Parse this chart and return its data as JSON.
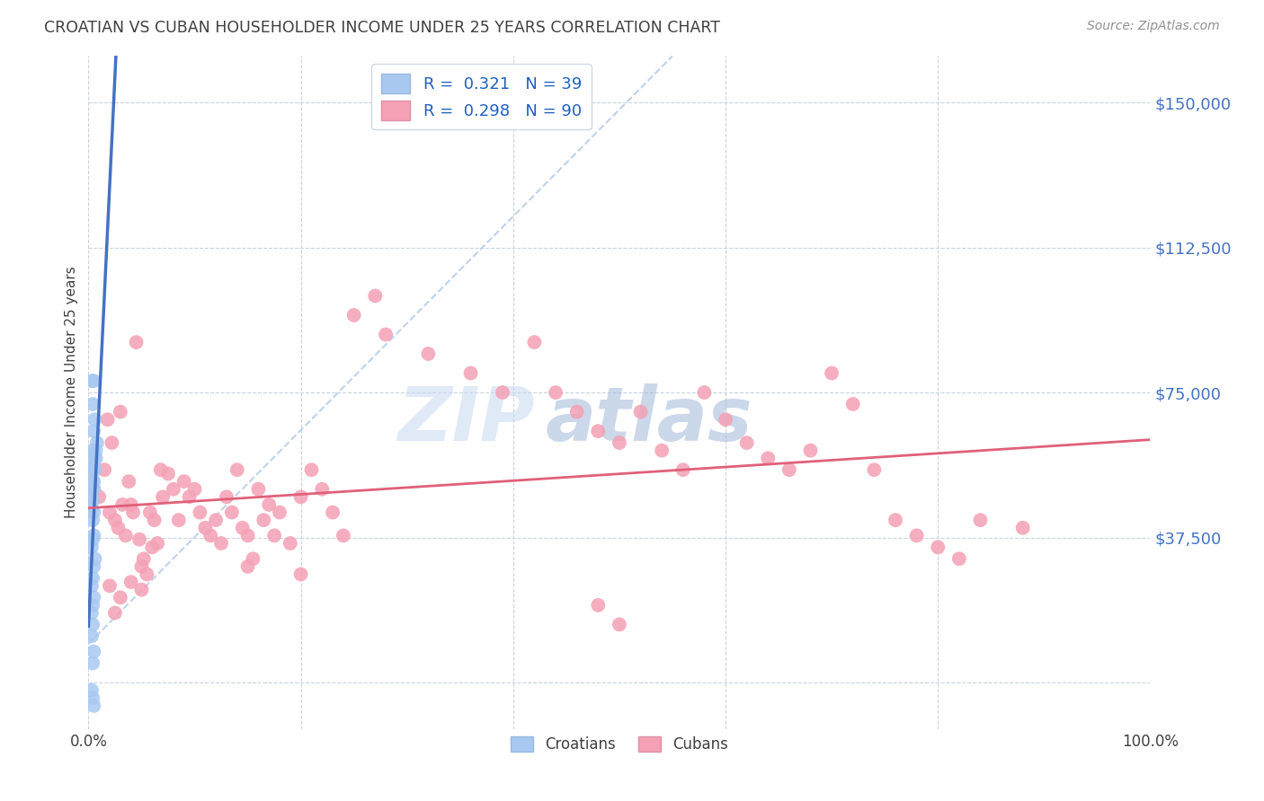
{
  "title": "CROATIAN VS CUBAN HOUSEHOLDER INCOME UNDER 25 YEARS CORRELATION CHART",
  "source": "Source: ZipAtlas.com",
  "ylabel": "Householder Income Under 25 years",
  "xlim": [
    0,
    1
  ],
  "ylim": [
    -12000,
    162000
  ],
  "yticks": [
    0,
    37500,
    75000,
    112500,
    150000
  ],
  "ytick_labels": [
    "",
    "$37,500",
    "$75,000",
    "$112,500",
    "$150,000"
  ],
  "xticks": [
    0,
    0.2,
    0.4,
    0.6,
    0.8,
    1.0
  ],
  "xtick_labels": [
    "0.0%",
    "",
    "",
    "",
    "",
    "100.0%"
  ],
  "croatian_R": 0.321,
  "croatian_N": 39,
  "cuban_R": 0.298,
  "cuban_N": 90,
  "croatian_color": "#a8c8f0",
  "cuban_color": "#f4a0b5",
  "croatian_line_color": "#4472c4",
  "cuban_line_color": "#e0607a",
  "diagonal_color": "#b8cfe8",
  "background_color": "#ffffff",
  "grid_color": "#c8d4e0",
  "title_color": "#404040",
  "source_color": "#909090",
  "label_color": "#4472c4",
  "watermark_zip": "ZIP",
  "watermark_atlas": "atlas",
  "watermark_color": "#c8d8f0",
  "croatian_points": [
    [
      0.003,
      78000
    ],
    [
      0.004,
      72000
    ],
    [
      0.005,
      78000
    ],
    [
      0.005,
      65000
    ],
    [
      0.006,
      68000
    ],
    [
      0.003,
      55000
    ],
    [
      0.004,
      52000
    ],
    [
      0.005,
      58000
    ],
    [
      0.004,
      60000
    ],
    [
      0.005,
      56000
    ],
    [
      0.003,
      48000
    ],
    [
      0.004,
      50000
    ],
    [
      0.005,
      52000
    ],
    [
      0.006,
      55000
    ],
    [
      0.007,
      58000
    ],
    [
      0.003,
      45000
    ],
    [
      0.004,
      47000
    ],
    [
      0.005,
      50000
    ],
    [
      0.004,
      42000
    ],
    [
      0.005,
      44000
    ],
    [
      0.003,
      35000
    ],
    [
      0.004,
      37000
    ],
    [
      0.005,
      38000
    ],
    [
      0.003,
      25000
    ],
    [
      0.004,
      27000
    ],
    [
      0.003,
      18000
    ],
    [
      0.004,
      20000
    ],
    [
      0.005,
      22000
    ],
    [
      0.003,
      12000
    ],
    [
      0.004,
      15000
    ],
    [
      0.005,
      8000
    ],
    [
      0.004,
      5000
    ],
    [
      0.003,
      -2000
    ],
    [
      0.004,
      -4000
    ],
    [
      0.005,
      -6000
    ],
    [
      0.005,
      30000
    ],
    [
      0.006,
      32000
    ],
    [
      0.007,
      60000
    ],
    [
      0.008,
      62000
    ]
  ],
  "cuban_points": [
    [
      0.005,
      50000
    ],
    [
      0.01,
      48000
    ],
    [
      0.015,
      55000
    ],
    [
      0.018,
      68000
    ],
    [
      0.02,
      44000
    ],
    [
      0.022,
      62000
    ],
    [
      0.025,
      42000
    ],
    [
      0.028,
      40000
    ],
    [
      0.03,
      70000
    ],
    [
      0.032,
      46000
    ],
    [
      0.035,
      38000
    ],
    [
      0.038,
      52000
    ],
    [
      0.04,
      46000
    ],
    [
      0.042,
      44000
    ],
    [
      0.045,
      88000
    ],
    [
      0.048,
      37000
    ],
    [
      0.05,
      30000
    ],
    [
      0.052,
      32000
    ],
    [
      0.055,
      28000
    ],
    [
      0.058,
      44000
    ],
    [
      0.06,
      35000
    ],
    [
      0.062,
      42000
    ],
    [
      0.065,
      36000
    ],
    [
      0.068,
      55000
    ],
    [
      0.07,
      48000
    ],
    [
      0.075,
      54000
    ],
    [
      0.08,
      50000
    ],
    [
      0.085,
      42000
    ],
    [
      0.09,
      52000
    ],
    [
      0.095,
      48000
    ],
    [
      0.1,
      50000
    ],
    [
      0.105,
      44000
    ],
    [
      0.11,
      40000
    ],
    [
      0.115,
      38000
    ],
    [
      0.12,
      42000
    ],
    [
      0.125,
      36000
    ],
    [
      0.13,
      48000
    ],
    [
      0.135,
      44000
    ],
    [
      0.14,
      55000
    ],
    [
      0.145,
      40000
    ],
    [
      0.15,
      38000
    ],
    [
      0.155,
      32000
    ],
    [
      0.16,
      50000
    ],
    [
      0.165,
      42000
    ],
    [
      0.17,
      46000
    ],
    [
      0.175,
      38000
    ],
    [
      0.18,
      44000
    ],
    [
      0.19,
      36000
    ],
    [
      0.2,
      48000
    ],
    [
      0.21,
      55000
    ],
    [
      0.22,
      50000
    ],
    [
      0.23,
      44000
    ],
    [
      0.24,
      38000
    ],
    [
      0.25,
      95000
    ],
    [
      0.27,
      100000
    ],
    [
      0.28,
      90000
    ],
    [
      0.32,
      85000
    ],
    [
      0.36,
      80000
    ],
    [
      0.39,
      75000
    ],
    [
      0.42,
      88000
    ],
    [
      0.44,
      75000
    ],
    [
      0.46,
      70000
    ],
    [
      0.48,
      65000
    ],
    [
      0.5,
      62000
    ],
    [
      0.52,
      70000
    ],
    [
      0.54,
      60000
    ],
    [
      0.56,
      55000
    ],
    [
      0.58,
      75000
    ],
    [
      0.6,
      68000
    ],
    [
      0.62,
      62000
    ],
    [
      0.64,
      58000
    ],
    [
      0.66,
      55000
    ],
    [
      0.68,
      60000
    ],
    [
      0.7,
      80000
    ],
    [
      0.72,
      72000
    ],
    [
      0.74,
      55000
    ],
    [
      0.76,
      42000
    ],
    [
      0.78,
      38000
    ],
    [
      0.8,
      35000
    ],
    [
      0.82,
      32000
    ],
    [
      0.84,
      42000
    ],
    [
      0.88,
      40000
    ],
    [
      0.02,
      25000
    ],
    [
      0.025,
      18000
    ],
    [
      0.03,
      22000
    ],
    [
      0.04,
      26000
    ],
    [
      0.05,
      24000
    ],
    [
      0.48,
      20000
    ],
    [
      0.5,
      15000
    ],
    [
      0.15,
      30000
    ],
    [
      0.2,
      28000
    ]
  ]
}
